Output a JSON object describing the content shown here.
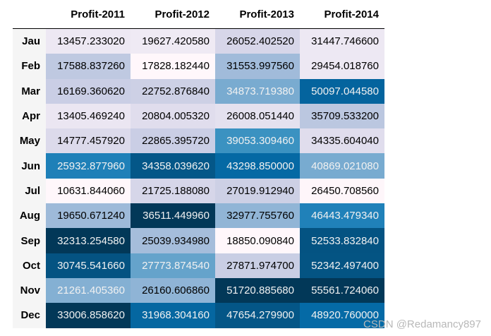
{
  "columns": [
    "Profit-2011",
    "Profit-2012",
    "Profit-2013",
    "Profit-2014"
  ],
  "rows": [
    {
      "label": "Jau",
      "values": [
        "13457.233020",
        "19627.420580",
        "26052.402520",
        "31447.746600"
      ],
      "bg": [
        "#ede8f3",
        "#efeaf4",
        "#d7d6e9",
        "#ede8f3"
      ],
      "fg": [
        "#000",
        "#000",
        "#000",
        "#000"
      ]
    },
    {
      "label": "Feb",
      "values": [
        "17588.837260",
        "17828.182440",
        "31553.997560",
        "29454.018760"
      ],
      "bg": [
        "#bfc9e1",
        "#fff7fb",
        "#a1bbda",
        "#ede8f3"
      ],
      "fg": [
        "#000",
        "#000",
        "#000",
        "#000"
      ]
    },
    {
      "label": "Mar",
      "values": [
        "16169.360620",
        "22752.876840",
        "34873.719380",
        "50097.044580"
      ],
      "bg": [
        "#cacee5",
        "#cdd0e5",
        "#79abd0",
        "#04649e"
      ],
      "fg": [
        "#000",
        "#000",
        "#f1f1f1",
        "#f1f1f1"
      ]
    },
    {
      "label": "Apr",
      "values": [
        "13405.469240",
        "20804.005320",
        "26008.051440",
        "35709.533200"
      ],
      "bg": [
        "#ebe6f2",
        "#e0dded",
        "#e4e1ef",
        "#bbc7e0"
      ],
      "fg": [
        "#000",
        "#000",
        "#000",
        "#000"
      ]
    },
    {
      "label": "May",
      "values": [
        "14777.457920",
        "22865.395720",
        "39053.309460",
        "34335.604040"
      ],
      "bg": [
        "#dcdaeb",
        "#cacee5",
        "#3b92c1",
        "#e0dded"
      ],
      "fg": [
        "#000",
        "#000",
        "#f1f1f1",
        "#000"
      ]
    },
    {
      "label": "Jun",
      "values": [
        "25932.877960",
        "34358.039620",
        "43298.850000",
        "40869.021080"
      ],
      "bg": [
        "#1e80b8",
        "#045788",
        "#0569a4",
        "#78abd0"
      ],
      "fg": [
        "#f1f1f1",
        "#f1f1f1",
        "#f1f1f1",
        "#f1f1f1"
      ]
    },
    {
      "label": "Jul",
      "values": [
        "10631.844060",
        "21725.188080",
        "27019.912940",
        "26450.708560"
      ],
      "bg": [
        "#fff7fb",
        "#d6d6e9",
        "#cdd0e5",
        "#fef6fa"
      ],
      "fg": [
        "#000",
        "#000",
        "#000",
        "#000"
      ]
    },
    {
      "label": "Aug",
      "values": [
        "19650.671240",
        "36511.449960",
        "32977.755760",
        "46443.479340"
      ],
      "bg": [
        "#9ebad9",
        "#023858",
        "#91b5d6",
        "#2081b9"
      ],
      "fg": [
        "#000",
        "#f1f1f1",
        "#000",
        "#f1f1f1"
      ]
    },
    {
      "label": "Sep",
      "values": [
        "32313.254580",
        "25039.934980",
        "18850.090840",
        "52533.832840"
      ],
      "bg": [
        "#023858",
        "#a5bddb",
        "#fff7fb",
        "#045382"
      ],
      "fg": [
        "#f1f1f1",
        "#000",
        "#000",
        "#f1f1f1"
      ]
    },
    {
      "label": "Oct",
      "values": [
        "30745.541660",
        "27773.874540",
        "27871.974700",
        "52342.497400"
      ],
      "bg": [
        "#045382",
        "#65a3cb",
        "#c9cee4",
        "#045483"
      ],
      "fg": [
        "#f1f1f1",
        "#f1f1f1",
        "#000",
        "#f1f1f1"
      ]
    },
    {
      "label": "Nov",
      "values": [
        "21261.405360",
        "26160.606860",
        "51720.885680",
        "55561.724060"
      ],
      "bg": [
        "#84b0d3",
        "#8fb4d6",
        "#023858",
        "#023858"
      ],
      "fg": [
        "#f1f1f1",
        "#000",
        "#f1f1f1",
        "#f1f1f1"
      ]
    },
    {
      "label": "Dec",
      "values": [
        "33006.858620",
        "31968.304160",
        "47654.279900",
        "48920.760000"
      ],
      "bg": [
        "#023858",
        "#0567a1",
        "#045687",
        "#056aa6"
      ],
      "fg": [
        "#f1f1f1",
        "#f1f1f1",
        "#f1f1f1",
        "#f1f1f1"
      ]
    }
  ],
  "watermark": "CSDN @Redamancy897"
}
